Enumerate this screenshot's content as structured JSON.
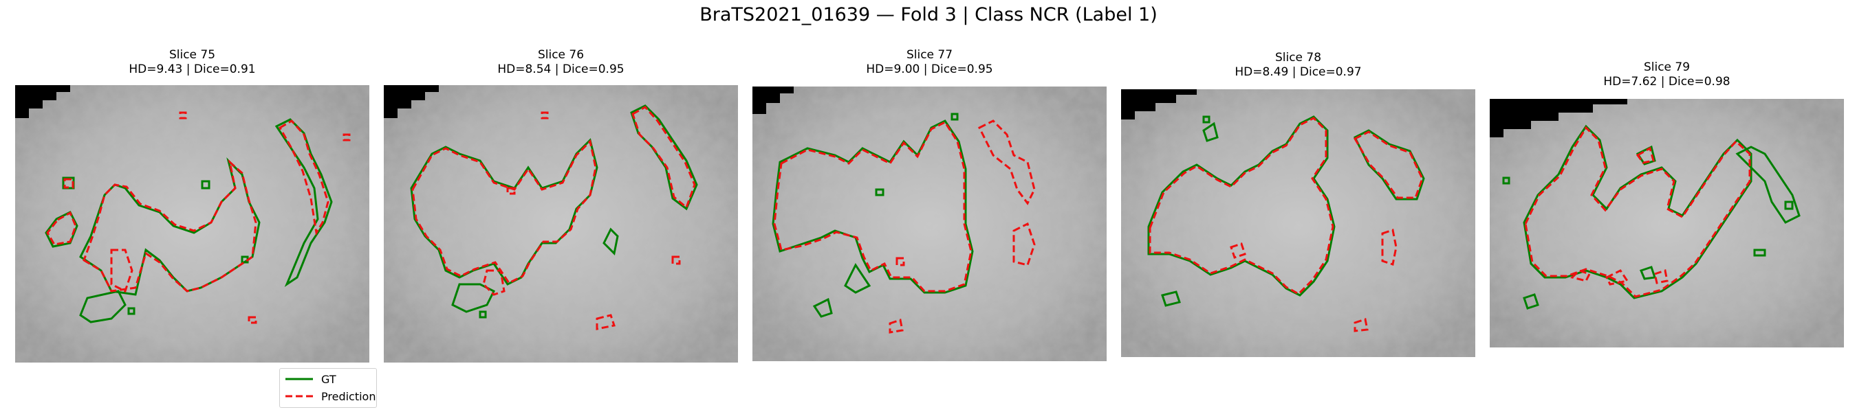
{
  "figure": {
    "title": "BraTS2021_01639 — Fold 3 | Class NCR (Label 1)"
  },
  "colors": {
    "gt": "#008000",
    "prediction": "#ee1111",
    "mask": "#000000"
  },
  "legend": {
    "gt_label": "GT",
    "prediction_label": "Prediction"
  },
  "panels": [
    {
      "slice": "Slice 75",
      "metrics": "HD=9.43 | Dice=0.91"
    },
    {
      "slice": "Slice 76",
      "metrics": "HD=8.54 | Dice=0.95"
    },
    {
      "slice": "Slice 77",
      "metrics": "HD=9.00 | Dice=0.95"
    },
    {
      "slice": "Slice 78",
      "metrics": "HD=8.49 | Dice=0.97"
    },
    {
      "slice": "Slice 79",
      "metrics": "HD=7.62 | Dice=0.98"
    }
  ]
}
